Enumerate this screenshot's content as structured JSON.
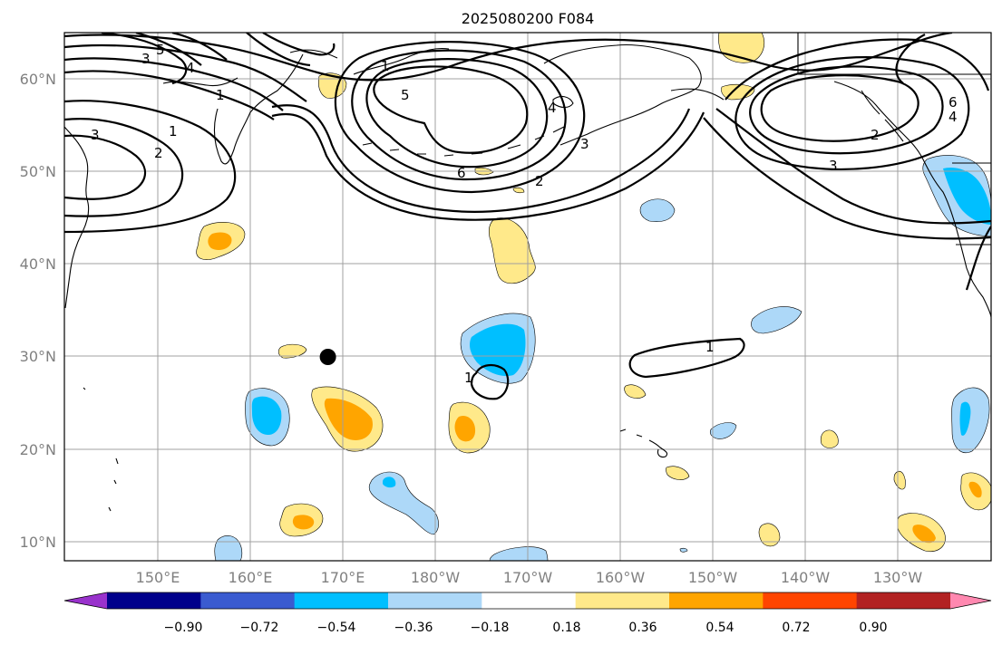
{
  "title": "2025080200 F084",
  "map": {
    "lon_range": [
      140,
      242
    ],
    "lat_range": [
      8,
      65
    ],
    "x_ticks": [
      "150°E",
      "160°E",
      "170°E",
      "180°W",
      "170°W",
      "160°W",
      "150°W",
      "140°W",
      "130°W"
    ],
    "y_ticks": [
      "60°N",
      "50°N",
      "40°N",
      "30°N",
      "20°N",
      "10°N"
    ],
    "gridlines": true,
    "marker": {
      "lon": 169,
      "lat": 30,
      "color": "#000000"
    }
  },
  "contour_labels": [
    "3",
    "5",
    "4",
    "1",
    "1",
    "1",
    "3",
    "2",
    "2",
    "5",
    "4",
    "3",
    "6",
    "2",
    "6",
    "4",
    "3",
    "1",
    "1"
  ],
  "colorbar": {
    "ticks": [
      "−0.90",
      "−0.72",
      "−0.54",
      "−0.36",
      "−0.18",
      "0.18",
      "0.36",
      "0.54",
      "0.72",
      "0.90"
    ],
    "colors": [
      "#9932cc",
      "#00008b",
      "#3a5bd0",
      "#00bfff",
      "#add8f8",
      "#ffffff",
      "#ffe98a",
      "#ffa500",
      "#ff4500",
      "#b22222",
      "#ff88b0"
    ],
    "extend": "both"
  }
}
